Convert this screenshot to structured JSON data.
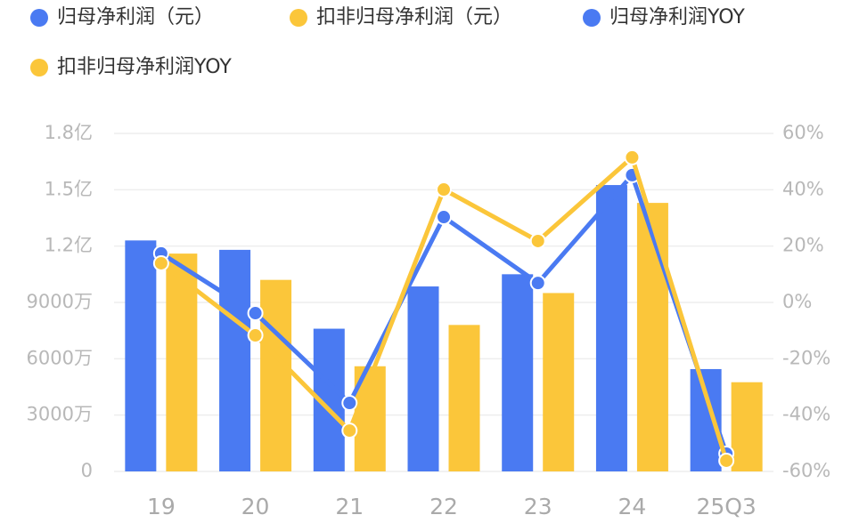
{
  "chart_data": {
    "type": "bar_line",
    "categories": [
      "19",
      "20",
      "21",
      "22",
      "23",
      "24",
      "25Q3"
    ],
    "series": [
      {
        "name": "归母净利润（元）",
        "color": "#4a7af2",
        "kind": "bar",
        "values": [
          12300,
          11800,
          7600,
          9850,
          10500,
          15250,
          5450
        ]
      },
      {
        "name": "扣非归母净利润（元）",
        "color": "#fbc63a",
        "kind": "bar",
        "values": [
          11600,
          10200,
          5600,
          7800,
          9500,
          14300,
          4750
        ]
      },
      {
        "name": "归母净利润YOY",
        "color": "#4a7af2",
        "kind": "line",
        "axis": "y2",
        "values": [
          17.4,
          -3.8,
          -35.7,
          30.3,
          6.9,
          45.2,
          -53.7
        ]
      },
      {
        "name": "扣非归母净利润YOY",
        "color": "#fbc63a",
        "kind": "line",
        "axis": "y2",
        "values": [
          13.9,
          -11.7,
          -45.5,
          40.1,
          21.8,
          51.5,
          -56.2
        ]
      }
    ],
    "ylim": [
      0,
      18000
    ],
    "yticks": [
      0,
      {
        "value": 3000,
        "label": "3000万"
      },
      {
        "value": 6000,
        "label": "6000万"
      },
      {
        "value": 9000,
        "label": "9000万"
      },
      {
        "value": 12000,
        "label": "1.2亿"
      },
      {
        "value": 15000,
        "label": "1.5亿"
      },
      {
        "value": 18000,
        "label": "1.8亿"
      }
    ],
    "y2lim": [
      -60,
      60
    ],
    "y2ticks": [
      {
        "value": -60,
        "label": "-60%"
      },
      {
        "value": -40,
        "label": "-40%"
      },
      {
        "value": -20,
        "label": "-20%"
      },
      {
        "value": 0,
        "label": "0%"
      },
      {
        "value": 20,
        "label": "20%"
      },
      {
        "value": 40,
        "label": "40%"
      },
      {
        "value": 60,
        "label": "60%"
      }
    ],
    "grid": true
  }
}
